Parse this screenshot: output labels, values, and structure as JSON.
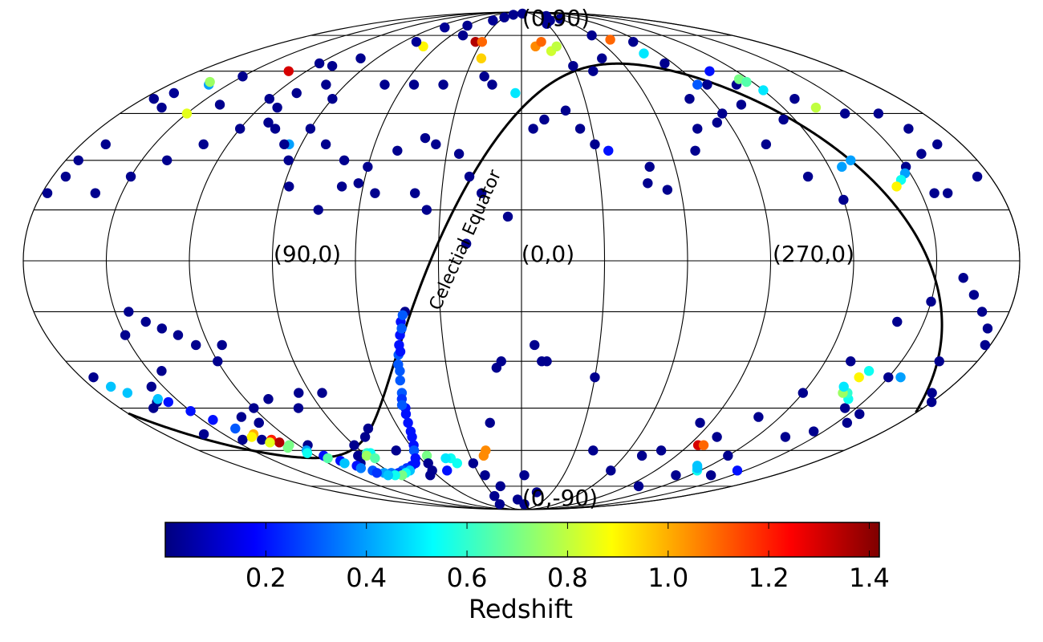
{
  "chart_data": {
    "type": "scatter",
    "projection": "mollweide",
    "coordinates": "galactic (l, b) in degrees",
    "grid": true,
    "graticule": {
      "longitude_step_deg": 30,
      "latitude_lines_deg": [
        -75,
        -60,
        -45,
        -30,
        -15,
        0,
        15,
        30,
        45,
        60,
        75
      ]
    },
    "region_labels": [
      {
        "text": "(0,90)",
        "l": 0,
        "b": 90
      },
      {
        "text": "(90,0)",
        "l": 90,
        "b": 0
      },
      {
        "text": "(0,0)",
        "l": 0,
        "b": 0
      },
      {
        "text": "(270,0)",
        "l": 270,
        "b": 0
      },
      {
        "text": "(0,-90)",
        "l": 0,
        "b": -90
      }
    ],
    "curve": {
      "name": "Celectial Equator",
      "type": "great_circle",
      "pole_ra_equiv_l": 122.9,
      "pole_b": 27.1
    },
    "colorbar": {
      "label": "Redshift",
      "colormap": "jet",
      "range": [
        0.0,
        1.42
      ],
      "ticks": [
        0.2,
        0.4,
        0.6,
        0.8,
        1.0,
        1.2,
        1.4
      ],
      "tick_labels": [
        "0.2",
        "0.4",
        "0.6",
        "0.8",
        "1.0",
        "1.2",
        "1.4"
      ],
      "location": "bottom"
    },
    "points_columns": [
      "l_deg",
      "b_deg",
      "redshift"
    ],
    "points": [
      [
        357,
        88,
        0.02
      ],
      [
        30,
        85,
        0.02
      ],
      [
        40,
        83,
        0.03
      ],
      [
        60,
        80,
        0.02
      ],
      [
        80,
        79,
        0.03
      ],
      [
        300,
        84,
        0.02
      ],
      [
        320,
        83,
        0.02
      ],
      [
        330,
        81,
        0.03
      ],
      [
        310,
        86,
        0.02
      ],
      [
        20,
        87,
        0.02
      ],
      [
        50,
        75,
        0.02
      ],
      [
        35,
        72,
        1.35
      ],
      [
        30,
        72,
        1.1
      ],
      [
        25,
        65,
        0.95
      ],
      [
        70,
        70,
        0.9
      ],
      [
        80,
        72,
        0.03
      ],
      [
        100,
        65,
        0.02
      ],
      [
        110,
        62,
        0.02
      ],
      [
        120,
        63,
        0.02
      ],
      [
        130,
        60,
        1.3
      ],
      [
        150,
        58,
        0.02
      ],
      [
        160,
        55,
        0.4
      ],
      [
        162,
        56,
        0.75
      ],
      [
        170,
        52,
        0.03
      ],
      [
        175,
        50,
        0.02
      ],
      [
        165,
        47,
        0.02
      ],
      [
        150,
        45,
        0.85
      ],
      [
        140,
        48,
        0.02
      ],
      [
        120,
        50,
        0.02
      ],
      [
        110,
        52,
        0.02
      ],
      [
        100,
        55,
        0.02
      ],
      [
        90,
        50,
        0.02
      ],
      [
        70,
        55,
        0.02
      ],
      [
        55,
        55,
        0.02
      ],
      [
        40,
        55,
        0.02
      ],
      [
        20,
        58,
        0.02
      ],
      [
        15,
        55,
        0.02
      ],
      [
        3,
        52,
        0.5
      ],
      [
        350,
        70,
        1.05
      ],
      [
        345,
        72,
        1.1
      ],
      [
        340,
        68,
        0.82
      ],
      [
        335,
        70,
        0.8
      ],
      [
        330,
        62,
        0.02
      ],
      [
        320,
        60,
        0.02
      ],
      [
        310,
        65,
        0.02
      ],
      [
        300,
        75,
        0.02
      ],
      [
        290,
        73,
        1.1
      ],
      [
        280,
        67,
        0.5
      ],
      [
        275,
        72,
        0.02
      ],
      [
        275,
        63,
        0.02
      ],
      [
        270,
        55,
        0.3
      ],
      [
        265,
        55,
        0.02
      ],
      [
        255,
        60,
        0.2
      ],
      [
        250,
        55,
        0.02
      ],
      [
        245,
        57,
        0.7
      ],
      [
        243,
        56,
        0.65
      ],
      [
        240,
        53,
        0.5
      ],
      [
        230,
        50,
        0.02
      ],
      [
        225,
        47,
        0.8
      ],
      [
        215,
        45,
        0.02
      ],
      [
        200,
        45,
        0.02
      ],
      [
        195,
        40,
        0.02
      ],
      [
        190,
        35,
        0.02
      ],
      [
        200,
        32,
        0.02
      ],
      [
        210,
        28,
        0.02
      ],
      [
        212,
        26,
        0.4
      ],
      [
        215,
        24,
        0.55
      ],
      [
        218,
        22,
        0.9
      ],
      [
        205,
        20,
        0.02
      ],
      [
        200,
        20,
        0.02
      ],
      [
        185,
        25,
        0.02
      ],
      [
        175,
        30,
        0.02
      ],
      [
        170,
        35,
        0.02
      ],
      [
        175,
        25,
        0.02
      ],
      [
        178,
        20,
        0.02
      ],
      [
        160,
        20,
        0.02
      ],
      [
        150,
        25,
        0.02
      ],
      [
        140,
        30,
        0.02
      ],
      [
        130,
        35,
        0.02
      ],
      [
        120,
        40,
        0.02
      ],
      [
        110,
        42,
        0.02
      ],
      [
        90,
        40,
        0.02
      ],
      [
        80,
        35,
        0.02
      ],
      [
        70,
        30,
        0.02
      ],
      [
        60,
        28,
        0.02
      ],
      [
        50,
        33,
        0.02
      ],
      [
        40,
        37,
        0.02
      ],
      [
        35,
        35,
        0.02
      ],
      [
        25,
        32,
        0.02
      ],
      [
        20,
        25,
        0.02
      ],
      [
        15,
        20,
        0.02
      ],
      [
        5,
        13,
        0.02
      ],
      [
        355,
        40,
        0.02
      ],
      [
        350,
        43,
        0.02
      ],
      [
        340,
        46,
        0.02
      ],
      [
        335,
        40,
        0.02
      ],
      [
        330,
        35,
        0.02
      ],
      [
        325,
        33,
        0.2
      ],
      [
        310,
        28,
        0.02
      ],
      [
        312,
        23,
        0.02
      ],
      [
        305,
        21,
        0.02
      ],
      [
        290,
        33,
        0.02
      ],
      [
        285,
        40,
        0.02
      ],
      [
        275,
        42,
        0.02
      ],
      [
        280,
        50,
        0.02
      ],
      [
        260,
        35,
        0.02
      ],
      [
        250,
        25,
        0.02
      ],
      [
        240,
        18,
        0.02
      ],
      [
        235,
        28,
        0.4
      ],
      [
        230,
        30,
        0.4
      ],
      [
        245,
        43,
        0.02
      ],
      [
        258,
        48,
        0.02
      ],
      [
        270,
        45,
        0.02
      ],
      [
        112,
        47,
        0.02
      ],
      [
        105,
        40,
        0.02
      ],
      [
        95,
        35,
        0.4
      ],
      [
        97,
        35,
        0.02
      ],
      [
        92,
        30,
        0.02
      ],
      [
        88,
        22,
        0.02
      ],
      [
        75,
        15,
        0.02
      ],
      [
        68,
        22,
        0.02
      ],
      [
        62,
        23,
        0.02
      ],
      [
        55,
        20,
        0.02
      ],
      [
        40,
        20,
        0.02
      ],
      [
        35,
        15,
        0.02
      ],
      [
        20,
        5,
        0.02
      ],
      [
        10,
        -32,
        0.02
      ],
      [
        358,
        -70,
        0.02
      ],
      [
        345,
        -78,
        0.02
      ],
      [
        355,
        -85,
        0.02
      ],
      [
        5,
        -82,
        0.02
      ],
      [
        18,
        -75,
        0.02
      ],
      [
        30,
        -80,
        0.02
      ],
      [
        38,
        -85,
        0.02
      ],
      [
        26,
        -70,
        0.02
      ],
      [
        30,
        -65,
        0.02
      ],
      [
        40,
        -65,
        0.55
      ],
      [
        42,
        -63,
        0.55
      ],
      [
        45,
        -63,
        0.5
      ],
      [
        50,
        -68,
        0.2
      ],
      [
        60,
        -60,
        0.2
      ],
      [
        55,
        -62,
        0.7
      ],
      [
        70,
        -60,
        0.02
      ],
      [
        75,
        -52,
        0.02
      ],
      [
        80,
        -55,
        0.02
      ],
      [
        90,
        -58,
        0.02
      ],
      [
        95,
        -62,
        0.02
      ],
      [
        85,
        -40,
        0.02
      ],
      [
        95,
        -40,
        0.02
      ],
      [
        100,
        -45,
        0.02
      ],
      [
        110,
        -42,
        0.02
      ],
      [
        120,
        -45,
        0.02
      ],
      [
        125,
        -50,
        0.02
      ],
      [
        130,
        -48,
        0.02
      ],
      [
        120,
        -30,
        0.02
      ],
      [
        115,
        -25,
        0.02
      ],
      [
        125,
        -25,
        0.02
      ],
      [
        130,
        -22,
        0.02
      ],
      [
        135,
        -20,
        0.02
      ],
      [
        140,
        -18,
        0.02
      ],
      [
        145,
        -15,
        0.02
      ],
      [
        150,
        -22,
        0.02
      ],
      [
        145,
        -33,
        0.02
      ],
      [
        155,
        -38,
        0.02
      ],
      [
        160,
        -43,
        0.02
      ],
      [
        165,
        -45,
        0.02
      ],
      [
        160,
        -54,
        0.02
      ],
      [
        145,
        -56,
        0.02
      ],
      [
        135,
        -56,
        0.02
      ],
      [
        125,
        -50,
        0.02
      ],
      [
        115,
        -58,
        0.02
      ],
      [
        100,
        -65,
        0.02
      ],
      [
        22,
        -62,
        1.05
      ],
      [
        20,
        -60,
        1.05
      ],
      [
        15,
        -50,
        0.02
      ],
      [
        8,
        -30,
        0.02
      ],
      [
        355,
        -25,
        0.02
      ],
      [
        352,
        -30,
        0.02
      ],
      [
        350,
        -30,
        0.02
      ],
      [
        330,
        -35,
        0.02
      ],
      [
        320,
        -60,
        0.02
      ],
      [
        300,
        -68,
        0.02
      ],
      [
        290,
        -62,
        0.02
      ],
      [
        282,
        -60,
        0.02
      ],
      [
        275,
        -50,
        0.02
      ],
      [
        260,
        -55,
        0.02
      ],
      [
        265,
        -58,
        1.3
      ],
      [
        262,
        -58,
        1.1
      ],
      [
        250,
        -48,
        0.02
      ],
      [
        240,
        -40,
        0.02
      ],
      [
        230,
        -30,
        0.02
      ],
      [
        220,
        -18,
        0.02
      ],
      [
        210,
        -12,
        0.02
      ],
      [
        200,
        -5,
        0.02
      ],
      [
        195,
        -10,
        0.02
      ],
      [
        190,
        -15,
        0.02
      ],
      [
        195,
        -30,
        0.02
      ],
      [
        185,
        -40,
        0.02
      ],
      [
        180,
        -43,
        0.02
      ],
      [
        172,
        -38,
        0.45
      ],
      [
        168,
        -40,
        0.45
      ],
      [
        175,
        -35,
        0.02
      ],
      [
        182,
        -25,
        0.02
      ],
      [
        185,
        -20,
        0.02
      ],
      [
        210,
        -35,
        0.02
      ],
      [
        215,
        -45,
        0.02
      ],
      [
        225,
        -55,
        0.02
      ],
      [
        240,
        -62,
        0.02
      ],
      [
        250,
        -70,
        0.02
      ],
      [
        260,
        -75,
        0.02
      ],
      [
        225,
        -70,
        0.02
      ],
      [
        215,
        -68,
        0.2
      ],
      [
        215,
        -53,
        0.02
      ],
      [
        205,
        -50,
        0.02
      ],
      [
        205,
        -47,
        0.02
      ],
      [
        218,
        -42,
        0.55
      ],
      [
        221,
        -40,
        0.6
      ],
      [
        223,
        -40,
        0.75
      ],
      [
        225,
        -38,
        0.5
      ],
      [
        222,
        -35,
        0.9
      ],
      [
        220,
        -33,
        0.55
      ],
      [
        205,
        -35,
        0.4
      ],
      [
        242,
        -68,
        0.55
      ],
      [
        245,
        -67,
        0.45
      ],
      [
        248,
        -66,
        0.45
      ],
      [
        65,
        -70,
        0.02
      ],
      [
        60,
        -68,
        0.02
      ],
      [
        58,
        -65,
        0.02
      ],
      [
        43,
        -15,
        0.02
      ],
      [
        45,
        -18,
        0.2
      ],
      [
        46,
        -22,
        0.2
      ],
      [
        47,
        -25,
        0.2
      ],
      [
        48,
        -28,
        0.3
      ],
      [
        49,
        -33,
        0.3
      ],
      [
        50,
        -36,
        0.3
      ],
      [
        51,
        -40,
        0.3
      ],
      [
        52,
        -45,
        0.2
      ],
      [
        53,
        -47,
        0.2
      ],
      [
        54,
        -50,
        0.2
      ],
      [
        55,
        -53,
        0.2
      ],
      [
        56,
        -55,
        0.2
      ],
      [
        58,
        -58,
        0.2
      ],
      [
        60,
        -60,
        0.3
      ],
      [
        63,
        -63,
        0.2
      ],
      [
        66,
        -65,
        0.2
      ],
      [
        70,
        -66,
        0.2
      ],
      [
        75,
        -67,
        0.25
      ],
      [
        80,
        -68,
        0.3
      ],
      [
        85,
        -69,
        0.25
      ],
      [
        90,
        -69,
        0.35
      ],
      [
        95,
        -69,
        0.4
      ],
      [
        100,
        -68,
        0.3
      ],
      [
        105,
        -66,
        0.2
      ],
      [
        110,
        -64,
        0.2
      ],
      [
        115,
        -62,
        0.2
      ],
      [
        120,
        -60,
        0.4
      ],
      [
        125,
        -58,
        0.7
      ],
      [
        130,
        -56,
        1.2
      ],
      [
        128,
        -57,
        1.35
      ],
      [
        135,
        -54,
        1.0
      ],
      [
        140,
        -52,
        0.3
      ],
      [
        145,
        -49,
        0.2
      ],
      [
        150,
        -46,
        0.2
      ],
      [
        155,
        -43,
        0.2
      ],
      [
        158,
        -42,
        0.45
      ],
      [
        75,
        -68,
        0.45
      ],
      [
        80,
        -69,
        0.55
      ],
      [
        85,
        -70,
        0.7
      ],
      [
        90,
        -70,
        0.55
      ],
      [
        95,
        -70,
        0.45
      ],
      [
        100,
        -69,
        0.25
      ],
      [
        105,
        -67,
        0.35
      ],
      [
        110,
        -65,
        0.45
      ],
      [
        115,
        -63,
        0.65
      ],
      [
        122,
        -61,
        0.55
      ],
      [
        128,
        -59,
        0.7
      ],
      [
        133,
        -57,
        0.85
      ],
      [
        138,
        -55,
        0.9
      ],
      [
        44,
        -16,
        0.3
      ],
      [
        45,
        -20,
        0.3
      ],
      [
        47,
        -27,
        0.2
      ],
      [
        49,
        -31,
        0.3
      ],
      [
        52,
        -42,
        0.25
      ],
      [
        53,
        -44,
        0.3
      ],
      [
        88,
        -61,
        0.6
      ],
      [
        86,
        -61,
        0.55
      ],
      [
        90,
        -62,
        0.75
      ],
      [
        87,
        -63,
        0.65
      ]
    ]
  }
}
